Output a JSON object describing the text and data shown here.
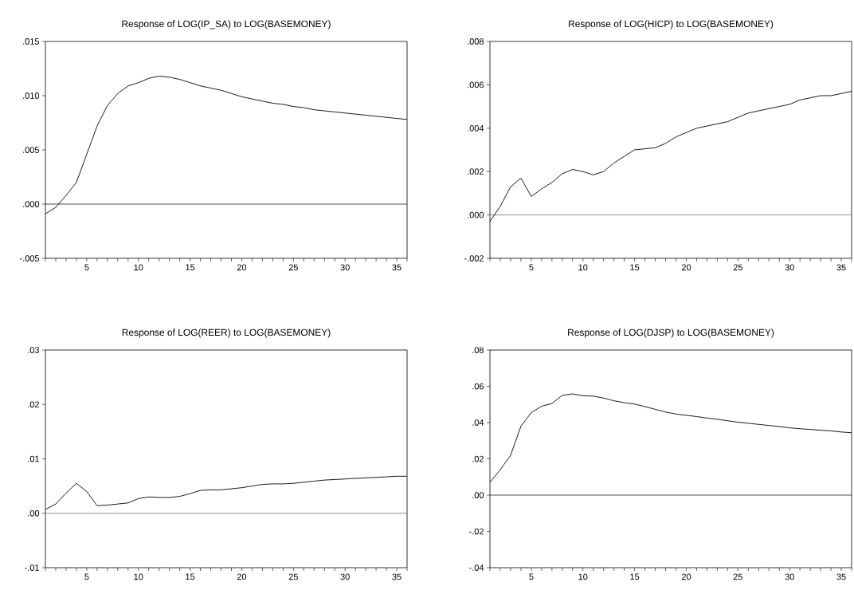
{
  "chart_data": [
    {
      "type": "line",
      "title": "Response of LOG(IP_SA) to LOG(BASEMONEY)",
      "color": "#000000",
      "x": [
        1,
        2,
        3,
        4,
        5,
        6,
        7,
        8,
        9,
        10,
        11,
        12,
        13,
        14,
        15,
        16,
        17,
        18,
        19,
        20,
        21,
        22,
        23,
        24,
        25,
        26,
        27,
        28,
        29,
        30,
        31,
        32,
        33,
        34,
        35,
        36
      ],
      "values": [
        -0.0009,
        -0.0003,
        0.0008,
        0.002,
        0.0046,
        0.0072,
        0.0091,
        0.0102,
        0.0109,
        0.0112,
        0.0116,
        0.0118,
        0.0117,
        0.0115,
        0.0112,
        0.0109,
        0.0107,
        0.0105,
        0.0102,
        0.0099,
        0.0097,
        0.0095,
        0.0093,
        0.0092,
        0.009,
        0.0089,
        0.0087,
        0.0086,
        0.0085,
        0.0084,
        0.0083,
        0.0082,
        0.0081,
        0.008,
        0.0079,
        0.0078
      ],
      "xlim": [
        1,
        36
      ],
      "ylim": [
        -0.005,
        0.015
      ],
      "xticks": [
        {
          "value": 1,
          "label": null
        },
        {
          "value": 2,
          "label": null
        },
        {
          "value": 3,
          "label": null
        },
        {
          "value": 4,
          "label": null
        },
        5,
        {
          "value": 6,
          "label": null
        },
        {
          "value": 7,
          "label": null
        },
        {
          "value": 8,
          "label": null
        },
        {
          "value": 9,
          "label": null
        },
        10,
        {
          "value": 11,
          "label": null
        },
        {
          "value": 12,
          "label": null
        },
        {
          "value": 13,
          "label": null
        },
        {
          "value": 14,
          "label": null
        },
        15,
        {
          "value": 16,
          "label": null
        },
        {
          "value": 17,
          "label": null
        },
        {
          "value": 18,
          "label": null
        },
        {
          "value": 19,
          "label": null
        },
        20,
        {
          "value": 21,
          "label": null
        },
        {
          "value": 22,
          "label": null
        },
        {
          "value": 23,
          "label": null
        },
        {
          "value": 24,
          "label": null
        },
        25,
        {
          "value": 26,
          "label": null
        },
        {
          "value": 27,
          "label": null
        },
        {
          "value": 28,
          "label": null
        },
        {
          "value": 29,
          "label": null
        },
        30,
        {
          "value": 31,
          "label": null
        },
        {
          "value": 32,
          "label": null
        },
        {
          "value": 33,
          "label": null
        },
        {
          "value": 34,
          "label": null
        },
        35,
        {
          "value": 36,
          "label": null
        }
      ],
      "yticks": [
        {
          "value": -0.005,
          "label": "-.005"
        },
        {
          "value": 0,
          "label": ".000"
        },
        {
          "value": 0.005,
          "label": ".005"
        },
        {
          "value": 0.01,
          "label": ".010"
        },
        {
          "value": 0.015,
          "label": ".015"
        }
      ],
      "ref_lines": [
        {
          "axis": "y",
          "value": 0,
          "color": "#000000"
        }
      ]
    },
    {
      "type": "line",
      "title": "Response of LOG(HICP) to LOG(BASEMONEY)",
      "color": "#000000",
      "x": [
        1,
        2,
        3,
        4,
        5,
        6,
        7,
        8,
        9,
        10,
        11,
        12,
        13,
        14,
        15,
        16,
        17,
        18,
        19,
        20,
        21,
        22,
        23,
        24,
        25,
        26,
        27,
        28,
        29,
        30,
        31,
        32,
        33,
        34,
        35,
        36
      ],
      "values": [
        -0.0003,
        0.0004,
        0.0013,
        0.0017,
        0.00085,
        0.0012,
        0.0015,
        0.0019,
        0.0021,
        0.002,
        0.00185,
        0.002,
        0.0024,
        0.0027,
        0.003,
        0.00305,
        0.0031,
        0.0033,
        0.0036,
        0.0038,
        0.004,
        0.0041,
        0.0042,
        0.0043,
        0.0045,
        0.0047,
        0.0048,
        0.0049,
        0.005,
        0.0051,
        0.0053,
        0.0054,
        0.0055,
        0.0055,
        0.0056,
        0.0057
      ],
      "xlim": [
        1,
        36
      ],
      "ylim": [
        -0.002,
        0.008
      ],
      "xticks": [
        {
          "value": 1,
          "label": null
        },
        {
          "value": 2,
          "label": null
        },
        {
          "value": 3,
          "label": null
        },
        {
          "value": 4,
          "label": null
        },
        5,
        {
          "value": 6,
          "label": null
        },
        {
          "value": 7,
          "label": null
        },
        {
          "value": 8,
          "label": null
        },
        {
          "value": 9,
          "label": null
        },
        10,
        {
          "value": 11,
          "label": null
        },
        {
          "value": 12,
          "label": null
        },
        {
          "value": 13,
          "label": null
        },
        {
          "value": 14,
          "label": null
        },
        15,
        {
          "value": 16,
          "label": null
        },
        {
          "value": 17,
          "label": null
        },
        {
          "value": 18,
          "label": null
        },
        {
          "value": 19,
          "label": null
        },
        20,
        {
          "value": 21,
          "label": null
        },
        {
          "value": 22,
          "label": null
        },
        {
          "value": 23,
          "label": null
        },
        {
          "value": 24,
          "label": null
        },
        25,
        {
          "value": 26,
          "label": null
        },
        {
          "value": 27,
          "label": null
        },
        {
          "value": 28,
          "label": null
        },
        {
          "value": 29,
          "label": null
        },
        30,
        {
          "value": 31,
          "label": null
        },
        {
          "value": 32,
          "label": null
        },
        {
          "value": 33,
          "label": null
        },
        {
          "value": 34,
          "label": null
        },
        35,
        {
          "value": 36,
          "label": null
        }
      ],
      "yticks": [
        {
          "value": -0.002,
          "label": "-.002"
        },
        {
          "value": 0,
          "label": ".000"
        },
        {
          "value": 0.002,
          "label": ".002"
        },
        {
          "value": 0.004,
          "label": ".004"
        },
        {
          "value": 0.006,
          "label": ".006"
        },
        {
          "value": 0.008,
          "label": ".008"
        }
      ],
      "ref_lines": [
        {
          "axis": "y",
          "value": 0,
          "color": "#606060"
        }
      ]
    },
    {
      "type": "line",
      "title": "Response of LOG(REER) to LOG(BASEMONEY)",
      "color": "#000000",
      "x": [
        1,
        2,
        3,
        4,
        5,
        6,
        7,
        8,
        9,
        10,
        11,
        12,
        13,
        14,
        15,
        16,
        17,
        18,
        19,
        20,
        21,
        22,
        23,
        24,
        25,
        26,
        27,
        28,
        29,
        30,
        31,
        32,
        33,
        34,
        35,
        36
      ],
      "values": [
        0.0007,
        0.0017,
        0.0037,
        0.0055,
        0.004,
        0.0014,
        0.0015,
        0.0017,
        0.0019,
        0.0027,
        0.003,
        0.0029,
        0.0029,
        0.0031,
        0.0036,
        0.0042,
        0.0043,
        0.0043,
        0.0045,
        0.0047,
        0.005,
        0.0053,
        0.0054,
        0.0054,
        0.0055,
        0.0057,
        0.0059,
        0.0061,
        0.0062,
        0.0063,
        0.0064,
        0.0065,
        0.0066,
        0.0067,
        0.0068,
        0.0068
      ],
      "xlim": [
        1,
        36
      ],
      "ylim": [
        -0.01,
        0.03
      ],
      "xticks": [
        {
          "value": 1,
          "label": null
        },
        {
          "value": 2,
          "label": null
        },
        {
          "value": 3,
          "label": null
        },
        {
          "value": 4,
          "label": null
        },
        5,
        {
          "value": 6,
          "label": null
        },
        {
          "value": 7,
          "label": null
        },
        {
          "value": 8,
          "label": null
        },
        {
          "value": 9,
          "label": null
        },
        10,
        {
          "value": 11,
          "label": null
        },
        {
          "value": 12,
          "label": null
        },
        {
          "value": 13,
          "label": null
        },
        {
          "value": 14,
          "label": null
        },
        15,
        {
          "value": 16,
          "label": null
        },
        {
          "value": 17,
          "label": null
        },
        {
          "value": 18,
          "label": null
        },
        {
          "value": 19,
          "label": null
        },
        20,
        {
          "value": 21,
          "label": null
        },
        {
          "value": 22,
          "label": null
        },
        {
          "value": 23,
          "label": null
        },
        {
          "value": 24,
          "label": null
        },
        25,
        {
          "value": 26,
          "label": null
        },
        {
          "value": 27,
          "label": null
        },
        {
          "value": 28,
          "label": null
        },
        {
          "value": 29,
          "label": null
        },
        30,
        {
          "value": 31,
          "label": null
        },
        {
          "value": 32,
          "label": null
        },
        {
          "value": 33,
          "label": null
        },
        {
          "value": 34,
          "label": null
        },
        35,
        {
          "value": 36,
          "label": null
        }
      ],
      "yticks": [
        {
          "value": -0.01,
          "label": "-.01"
        },
        {
          "value": 0,
          "label": ".00"
        },
        {
          "value": 0.01,
          "label": ".01"
        },
        {
          "value": 0.02,
          "label": ".02"
        },
        {
          "value": 0.03,
          "label": ".03"
        }
      ],
      "ref_lines": [
        {
          "axis": "y",
          "value": 0,
          "color": "#606060"
        }
      ]
    },
    {
      "type": "line",
      "title": "Response of LOG(DJSP) to LOG(BASEMONEY)",
      "color": "#000000",
      "x": [
        1,
        2,
        3,
        4,
        5,
        6,
        7,
        8,
        9,
        10,
        11,
        12,
        13,
        14,
        15,
        16,
        17,
        18,
        19,
        20,
        21,
        22,
        23,
        24,
        25,
        26,
        27,
        28,
        29,
        30,
        31,
        32,
        33,
        34,
        35,
        36
      ],
      "values": [
        0.007,
        0.014,
        0.022,
        0.038,
        0.0455,
        0.049,
        0.0505,
        0.055,
        0.0558,
        0.0548,
        0.0546,
        0.0535,
        0.052,
        0.051,
        0.0502,
        0.0488,
        0.0473,
        0.0458,
        0.0447,
        0.044,
        0.0433,
        0.0425,
        0.0418,
        0.041,
        0.0402,
        0.0396,
        0.039,
        0.0384,
        0.0378,
        0.0371,
        0.0366,
        0.0362,
        0.0358,
        0.0354,
        0.0348,
        0.0344
      ],
      "xlim": [
        1,
        36
      ],
      "ylim": [
        -0.04,
        0.08
      ],
      "xticks": [
        {
          "value": 1,
          "label": null
        },
        {
          "value": 2,
          "label": null
        },
        {
          "value": 3,
          "label": null
        },
        {
          "value": 4,
          "label": null
        },
        5,
        {
          "value": 6,
          "label": null
        },
        {
          "value": 7,
          "label": null
        },
        {
          "value": 8,
          "label": null
        },
        {
          "value": 9,
          "label": null
        },
        10,
        {
          "value": 11,
          "label": null
        },
        {
          "value": 12,
          "label": null
        },
        {
          "value": 13,
          "label": null
        },
        {
          "value": 14,
          "label": null
        },
        15,
        {
          "value": 16,
          "label": null
        },
        {
          "value": 17,
          "label": null
        },
        {
          "value": 18,
          "label": null
        },
        {
          "value": 19,
          "label": null
        },
        20,
        {
          "value": 21,
          "label": null
        },
        {
          "value": 22,
          "label": null
        },
        {
          "value": 23,
          "label": null
        },
        {
          "value": 24,
          "label": null
        },
        25,
        {
          "value": 26,
          "label": null
        },
        {
          "value": 27,
          "label": null
        },
        {
          "value": 28,
          "label": null
        },
        {
          "value": 29,
          "label": null
        },
        30,
        {
          "value": 31,
          "label": null
        },
        {
          "value": 32,
          "label": null
        },
        {
          "value": 33,
          "label": null
        },
        {
          "value": 34,
          "label": null
        },
        35,
        {
          "value": 36,
          "label": null
        }
      ],
      "yticks": [
        {
          "value": -0.04,
          "label": "-.04"
        },
        {
          "value": -0.02,
          "label": "-.02"
        },
        {
          "value": 0,
          "label": ".00"
        },
        {
          "value": 0.02,
          "label": ".02"
        },
        {
          "value": 0.04,
          "label": ".04"
        },
        {
          "value": 0.06,
          "label": ".06"
        },
        {
          "value": 0.08,
          "label": ".08"
        }
      ],
      "ref_lines": [
        {
          "axis": "y",
          "value": 0,
          "color": "#000000"
        }
      ]
    }
  ]
}
